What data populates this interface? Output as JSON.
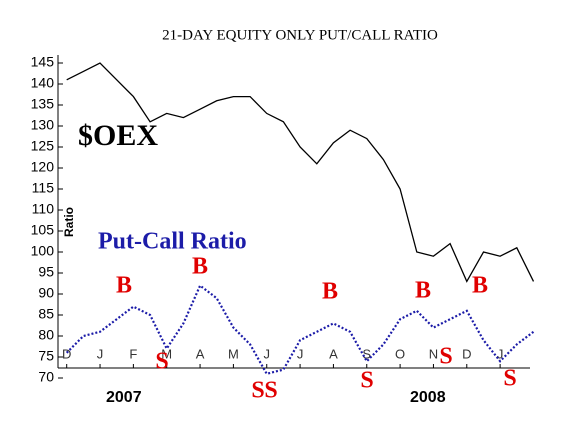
{
  "chart_data": {
    "type": "line",
    "title": "21-DAY EQUITY ONLY PUT/CALL RATIO",
    "y_label": "Ratio",
    "categories": [
      "D",
      null,
      "J",
      null,
      "F",
      null,
      "M",
      null,
      "A",
      null,
      "M",
      null,
      "J",
      null,
      "J",
      null,
      "A",
      null,
      "S",
      null,
      "O",
      null,
      "N",
      null,
      "D",
      null,
      "J",
      null,
      null
    ],
    "series": [
      {
        "name": "$OEX",
        "color": "#000000",
        "values": [
          141,
          143,
          145,
          141,
          137,
          131,
          133,
          132,
          134,
          136,
          137,
          137,
          133,
          131,
          125,
          121,
          126,
          129,
          127,
          122,
          115,
          100,
          99,
          102,
          93,
          100,
          99,
          101,
          93
        ]
      },
      {
        "name": "Put-Call Ratio",
        "color": "#1c1ca8",
        "values": [
          76,
          80,
          81,
          84,
          87,
          85,
          77,
          83,
          92,
          89,
          82,
          78,
          71,
          72,
          79,
          81,
          83,
          81,
          74,
          78,
          84,
          86,
          82,
          84,
          86,
          79,
          74,
          78,
          81
        ]
      }
    ],
    "ylim": [
      70,
      147
    ],
    "yticks": [
      70,
      75,
      80,
      85,
      90,
      95,
      100,
      105,
      110,
      115,
      120,
      125,
      130,
      135,
      140,
      145
    ],
    "year_labels": [
      "2007",
      "2008"
    ],
    "annotations": [
      "B",
      "S",
      "B",
      "S",
      "S",
      "B",
      "S",
      "B",
      "S",
      "B",
      "S"
    ]
  }
}
